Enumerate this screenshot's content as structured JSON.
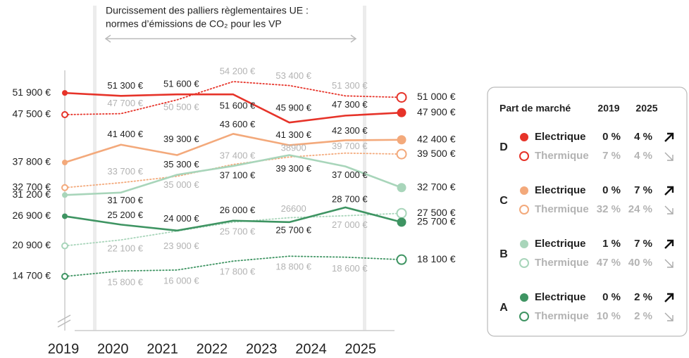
{
  "chart_data": {
    "type": "line",
    "annotation": [
      "Durcissement des palliers règlementaires UE :",
      "normes d’émissions de CO₂ pour les VP"
    ],
    "categories": [
      "2019",
      "2020",
      "2021",
      "2022",
      "2023",
      "2024",
      "2025"
    ],
    "legend_header": [
      "Part de marché",
      "2019",
      "2025"
    ],
    "series": [
      {
        "group": "D",
        "name": "Electrique",
        "style": "solid",
        "color": "#e63329",
        "share": [
          "0 %",
          "4 %"
        ],
        "trend": "up",
        "values": [
          51900,
          51300,
          51600,
          51600,
          45900,
          47300,
          47900
        ],
        "value_labels": [
          "51 900 €",
          "51 300 €",
          "51 600 €",
          "51 600 €",
          "45 900 €",
          "47 300 €",
          "47 900 €"
        ]
      },
      {
        "group": "D",
        "name": "Thermique",
        "style": "dotted",
        "color": "#e63329",
        "share": [
          "7 %",
          "4 %"
        ],
        "trend": "down",
        "values": [
          47500,
          47700,
          50500,
          54200,
          53400,
          51300,
          51000
        ],
        "value_labels": [
          "47 500 €",
          "47 700 €",
          "50 500 €",
          "54 200 €",
          "53 400 €",
          "51 300 €",
          "51 000 €"
        ]
      },
      {
        "group": "C",
        "name": "Electrique",
        "style": "solid",
        "color": "#f3a97b",
        "share": [
          "0 %",
          "7 %"
        ],
        "trend": "up",
        "values": [
          37800,
          41400,
          39300,
          43600,
          41300,
          42300,
          42400
        ],
        "value_labels": [
          "37 800 €",
          "41 400 €",
          "39 300 €",
          "43 600 €",
          "41 300 €",
          "42 300 €",
          "42 400 €"
        ]
      },
      {
        "group": "C",
        "name": "Thermique",
        "style": "dotted",
        "color": "#f3a97b",
        "share": [
          "32 %",
          "24 %"
        ],
        "trend": "down",
        "values": [
          32700,
          33700,
          35000,
          37400,
          38900,
          39700,
          39500
        ],
        "value_labels": [
          "32 700 €",
          "33 700 €",
          "35 000 €",
          "37 400 €",
          "38900",
          "39 700 €",
          "39 500 €"
        ]
      },
      {
        "group": "B",
        "name": "Electrique",
        "style": "solid",
        "color": "#a8d5ba",
        "share": [
          "1 %",
          "7 %"
        ],
        "trend": "up",
        "values": [
          31200,
          31700,
          35300,
          37100,
          39300,
          37000,
          32700
        ],
        "value_labels": [
          "31 200 €",
          "31 700 €",
          "35 300 €",
          "37 100 €",
          "39 300 €",
          "37 000 €",
          "32 700 €"
        ]
      },
      {
        "group": "B",
        "name": "Thermique",
        "style": "dotted",
        "color": "#a8d5ba",
        "share": [
          "47 %",
          "40 %"
        ],
        "trend": "down",
        "values": [
          20900,
          22100,
          23900,
          25700,
          26600,
          27000,
          27500
        ],
        "value_labels": [
          "20 900 €",
          "22 100 €",
          "23 900 €",
          "25 700 €",
          "26600",
          "27 000 €",
          "27 500 €"
        ]
      },
      {
        "group": "A",
        "name": "Electrique",
        "style": "solid",
        "color": "#3e9462",
        "share": [
          "0 %",
          "2 %"
        ],
        "trend": "up",
        "values": [
          26900,
          25200,
          24000,
          26000,
          25700,
          28700,
          25700
        ],
        "value_labels": [
          "26 900 €",
          "25 200 €",
          "24 000 €",
          "26 000 €",
          "25 700 €",
          "28 700 €",
          "25 700 €"
        ]
      },
      {
        "group": "A",
        "name": "Thermique",
        "style": "dotted",
        "color": "#3e9462",
        "share": [
          "10 %",
          "2 %"
        ],
        "trend": "down",
        "values": [
          14700,
          15800,
          16000,
          17800,
          18800,
          18600,
          18100
        ],
        "value_labels": [
          "14 700 €",
          "15 800 €",
          "16 000 €",
          "17 800 €",
          "18 800 €",
          "18 600 €",
          "18 100 €"
        ]
      }
    ]
  }
}
